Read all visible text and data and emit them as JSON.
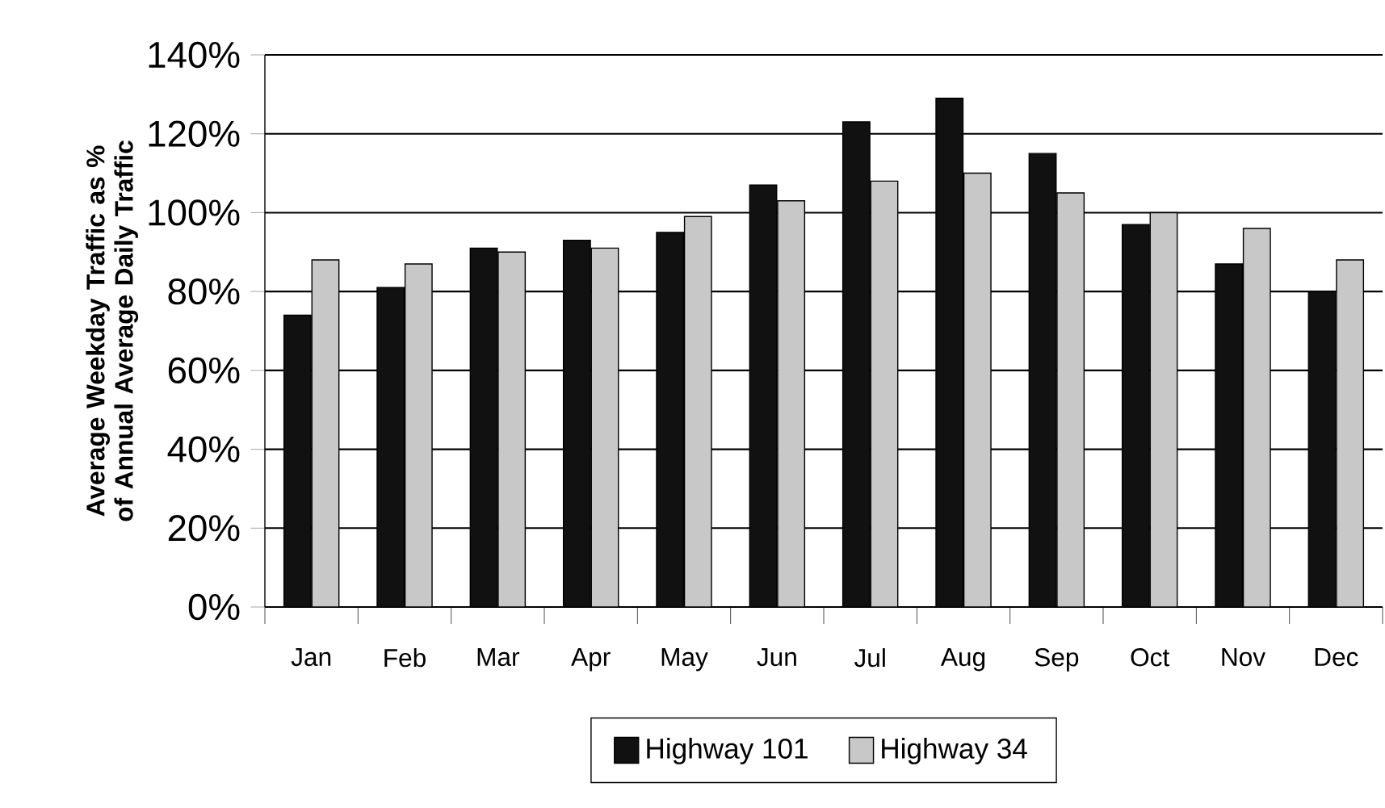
{
  "chart_data": {
    "type": "bar",
    "ylabel": "Average Weekday Traffic as % of Annual Average Daily Traffic",
    "categories": [
      "Jan",
      "Feb",
      "Mar",
      "Apr",
      "May",
      "Jun",
      "Jul",
      "Aug",
      "Sep",
      "Oct",
      "Nov",
      "Dec"
    ],
    "series": [
      {
        "name": "Highway 101",
        "color": "#111111",
        "values": [
          74,
          81,
          91,
          93,
          95,
          107,
          123,
          129,
          115,
          97,
          87,
          80
        ]
      },
      {
        "name": "Highway 34",
        "color": "#c8c8c8",
        "values": [
          88,
          87,
          90,
          91,
          99,
          103,
          108,
          110,
          105,
          100,
          96,
          88
        ]
      }
    ],
    "ylim": [
      0,
      140
    ],
    "yticks": [
      {
        "value": 0,
        "label": "0%"
      },
      {
        "value": 20,
        "label": "20%"
      },
      {
        "value": 40,
        "label": "40%"
      },
      {
        "value": 60,
        "label": "60%"
      },
      {
        "value": 80,
        "label": "80%"
      },
      {
        "value": 100,
        "label": "100%"
      },
      {
        "value": 120,
        "label": "120%"
      },
      {
        "value": 140,
        "label": "140%"
      }
    ],
    "grid": "y",
    "legend": "bottom"
  }
}
